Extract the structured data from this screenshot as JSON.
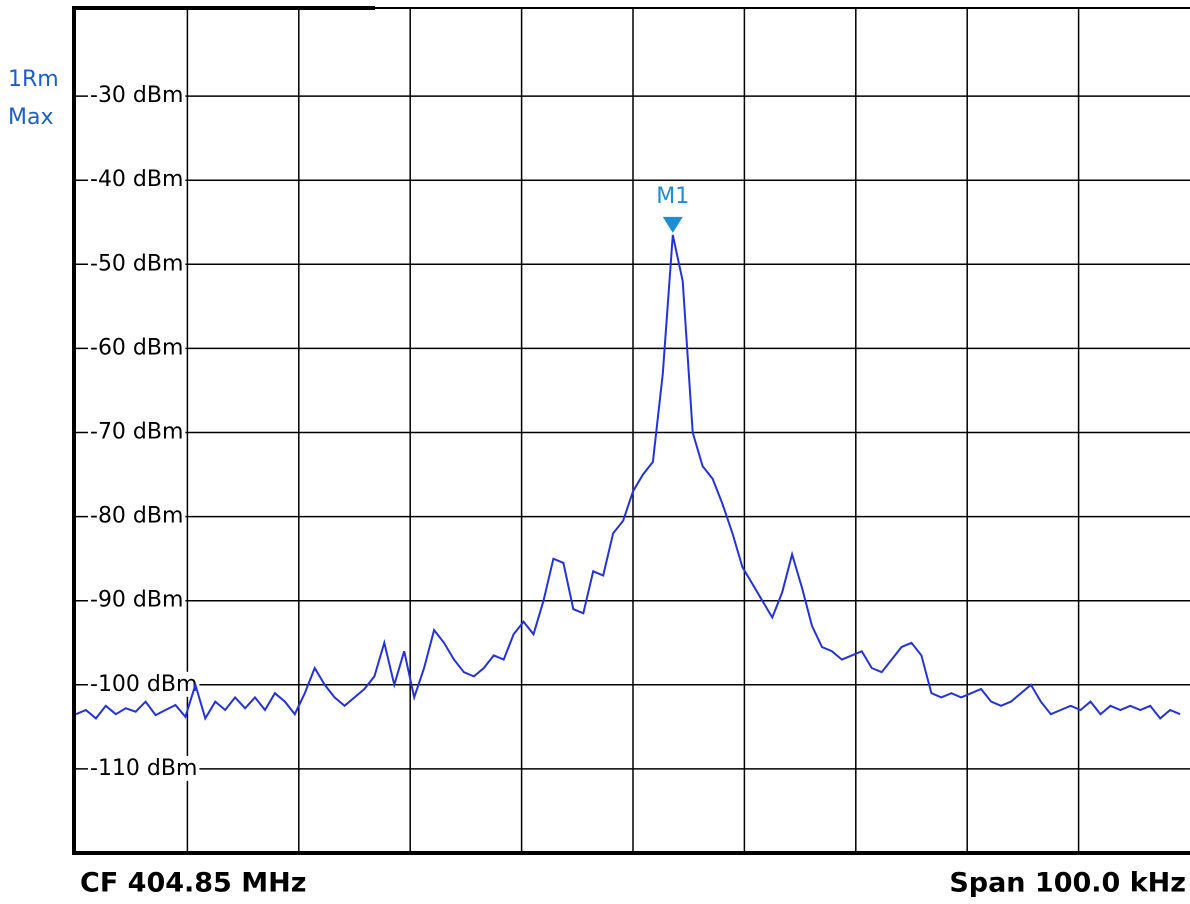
{
  "chart_data": {
    "type": "line",
    "trace_label": [
      "1Rm",
      "Max"
    ],
    "center_frequency_label": "CF 404.85 MHz",
    "span_label": "Span 100.0 kHz",
    "ylim": [
      -120,
      -20
    ],
    "yticks": [
      {
        "value": -30,
        "label": "-30 dBm"
      },
      {
        "value": -40,
        "label": "-40 dBm"
      },
      {
        "value": -50,
        "label": "-50 dBm"
      },
      {
        "value": -60,
        "label": "-60 dBm"
      },
      {
        "value": -70,
        "label": "-70 dBm"
      },
      {
        "value": -80,
        "label": "-80 dBm"
      },
      {
        "value": -90,
        "label": "-90 dBm"
      },
      {
        "value": -100,
        "label": "-100 dBm"
      },
      {
        "value": -110,
        "label": "-110 dBm"
      }
    ],
    "grid": true,
    "color": "#2233dd",
    "marker_color": "#1a8fd6",
    "markers": [
      {
        "label": "M1"
      }
    ],
    "values": [
      -103.5,
      -103,
      -104,
      -102.5,
      -103.5,
      -102.8,
      -103.2,
      -102,
      -103.6,
      -103,
      -102.4,
      -103.8,
      -100,
      -104,
      -102,
      -103,
      -101.5,
      -102.8,
      -101.5,
      -103,
      -101,
      -102,
      -103.5,
      -101,
      -98,
      -100,
      -101.5,
      -102.5,
      -101.5,
      -100.5,
      -99,
      -95,
      -100,
      -96,
      -101.5,
      -98,
      -93.5,
      -95,
      -97,
      -98.5,
      -99,
      -98,
      -96.5,
      -97,
      -94,
      -92.5,
      -94,
      -90,
      -85,
      -85.5,
      -91,
      -91.5,
      -86.5,
      -87,
      -82,
      -80.5,
      -77,
      -75,
      -73.5,
      -63,
      -46.5,
      -52,
      -70,
      -74,
      -75.5,
      -78.5,
      -82,
      -86,
      -88,
      -90,
      -92,
      -89,
      -84.5,
      -88.5,
      -93,
      -95.5,
      -96,
      -97,
      -96.5,
      -96,
      -98,
      -98.5,
      -97,
      -95.5,
      -95,
      -96.5,
      -101,
      -101.5,
      -101,
      -101.5,
      -101,
      -100.5,
      -102,
      -102.5,
      -102,
      -101,
      -100,
      -102,
      -103.5,
      -103,
      -102.5,
      -103,
      -102,
      -103.5,
      -102.5,
      -103,
      -102.5,
      -103,
      -102.5,
      -104,
      -103,
      -103.5
    ]
  }
}
